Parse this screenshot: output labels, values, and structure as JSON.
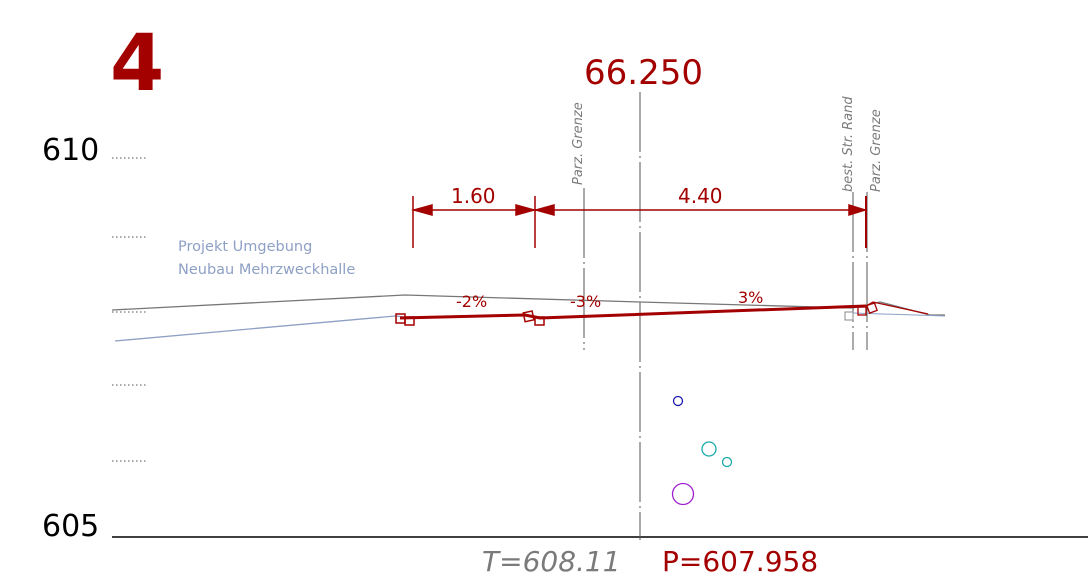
{
  "section_number": "4",
  "station": "66.250",
  "elevation_scale": {
    "top_label": "610",
    "bottom_label": "605"
  },
  "project_label": {
    "line1": "Projekt Umgebung",
    "line2": "Neubau Mehrzweckhalle"
  },
  "vertical_labels": {
    "parcel_left": "Parz. Grenze",
    "road_edge": "best. Str. Rand",
    "parcel_right": "Parz. Grenze"
  },
  "dimensions": {
    "left": "1.60",
    "right": "4.40"
  },
  "slopes": {
    "s1": "-2%",
    "s2": "-3%",
    "s3": "3%"
  },
  "footer": {
    "terrain": "T=608.11",
    "project": "P=607.958"
  },
  "colors": {
    "red": "#a30000",
    "gray": "#7a7a7a",
    "blue_line": "#8ea0c4",
    "dark_blue": "#1a1ab0",
    "cyan": "#1aa8a8",
    "magenta": "#a020d0"
  }
}
